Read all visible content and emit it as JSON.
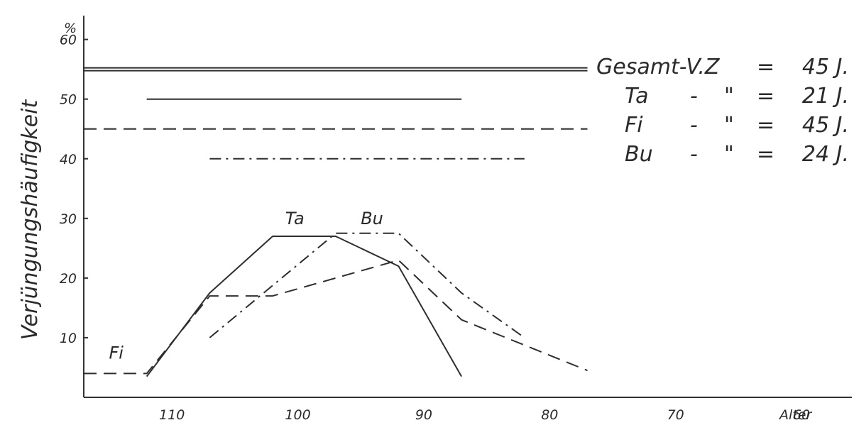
{
  "chart_data": {
    "type": "line",
    "ylabel": "Verjüngungshäufigkeit",
    "y_unit": "%",
    "xlabel": "Alter",
    "xlim": [
      117,
      56
    ],
    "ylim": [
      0,
      64
    ],
    "x_ticks": [
      110,
      100,
      90,
      80,
      70,
      60
    ],
    "y_ticks": [
      10,
      20,
      30,
      40,
      50,
      60
    ],
    "series": [
      {
        "name": "Ta",
        "style": "solid",
        "points": [
          [
            112,
            3.5
          ],
          [
            107,
            17.5
          ],
          [
            102,
            27
          ],
          [
            97,
            27
          ],
          [
            92,
            22
          ],
          [
            87,
            3.5
          ]
        ]
      },
      {
        "name": "Fi",
        "style": "dashed",
        "points": [
          [
            117,
            4
          ],
          [
            112,
            4
          ],
          [
            107,
            17
          ],
          [
            102,
            17
          ],
          [
            92,
            23
          ],
          [
            87,
            13
          ],
          [
            77,
            4.5
          ]
        ]
      },
      {
        "name": "Bu",
        "style": "dashdot",
        "points": [
          [
            107,
            10
          ],
          [
            97,
            27.5
          ],
          [
            92,
            27.5
          ],
          [
            87,
            17.5
          ],
          [
            82,
            10
          ]
        ]
      }
    ],
    "reference_lines": [
      {
        "style": "double",
        "y": 55,
        "x_from": 117,
        "x_to": 77
      },
      {
        "style": "solid",
        "y": 50,
        "x_from": 112,
        "x_to": 87
      },
      {
        "style": "dashed",
        "y": 45,
        "x_from": 117,
        "x_to": 77
      },
      {
        "style": "dashdot",
        "y": 40,
        "x_from": 107,
        "x_to": 82
      }
    ],
    "legend": [
      {
        "name": "Gesamt-V.Z",
        "sep": "=",
        "value": "45 J."
      },
      {
        "name": "Ta",
        "dash": "-",
        "ditto": "\"",
        "sep": "=",
        "value": "21 J."
      },
      {
        "name": "Fi",
        "dash": "-",
        "ditto": "\"",
        "sep": "=",
        "value": "45 J."
      },
      {
        "name": "Bu",
        "dash": "-",
        "ditto": "\"",
        "sep": "=",
        "value": "24 J."
      }
    ],
    "legend_placement": "top-right",
    "grid": false
  }
}
